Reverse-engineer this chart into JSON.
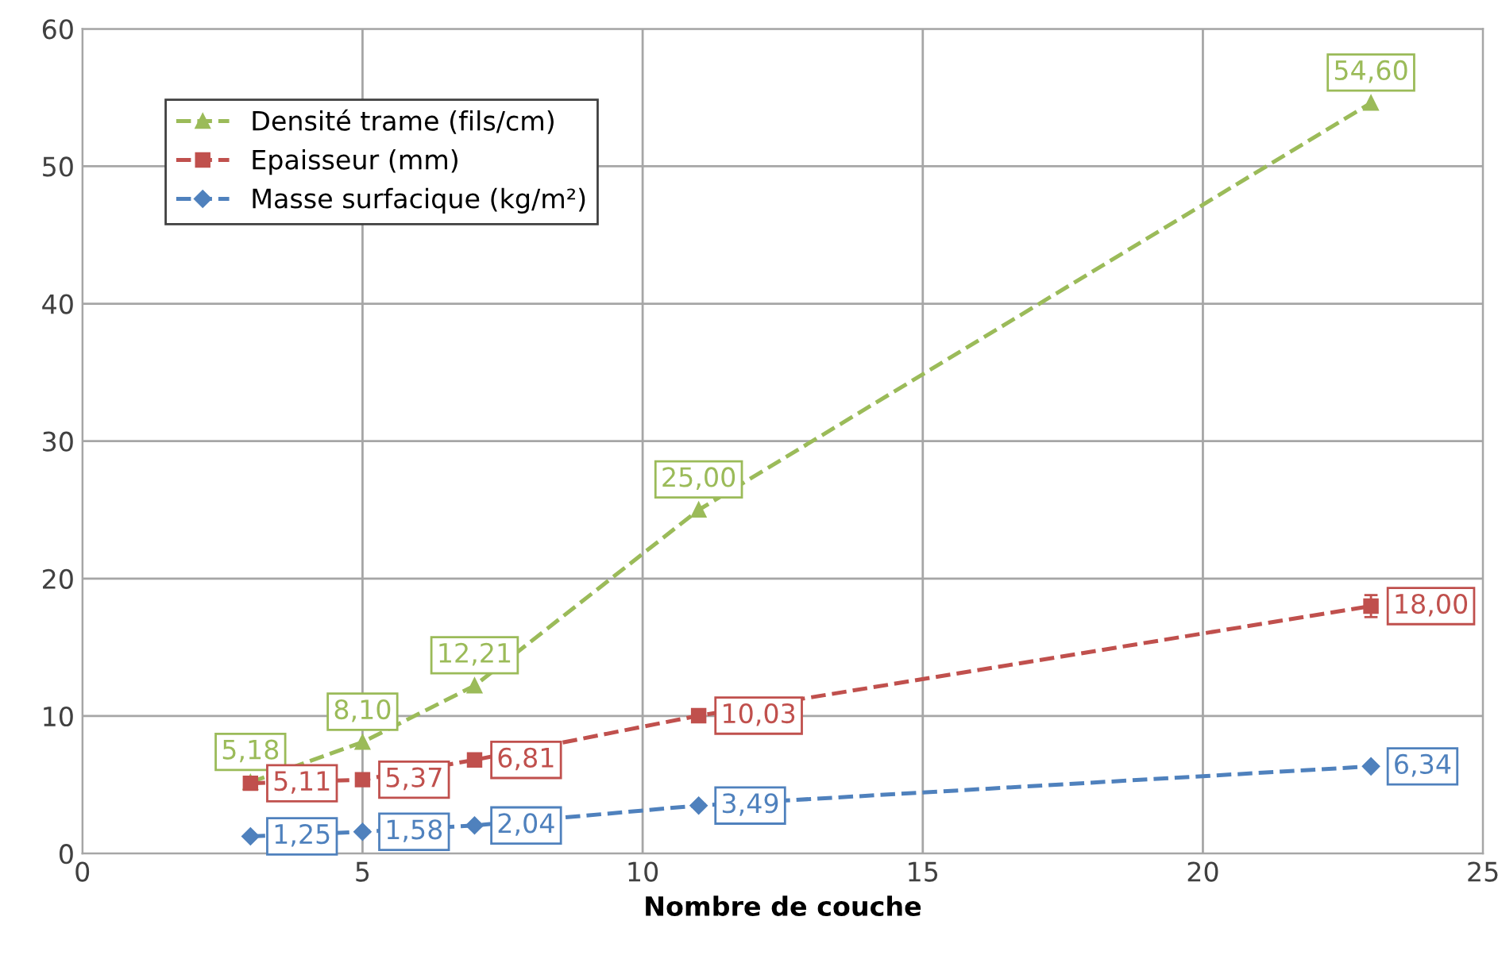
{
  "chart_data": {
    "type": "line",
    "xlabel": "Nombre de couche",
    "x": [
      3,
      5,
      7,
      11,
      23
    ],
    "series": [
      {
        "name": "Densité trame (fils/cm)",
        "color": "#9bbb59",
        "marker": "triangle",
        "values": [
          5.18,
          8.1,
          12.21,
          25.0,
          54.6
        ],
        "value_labels": [
          "5,18",
          "8,10",
          "12,21",
          "25,00",
          "54,60"
        ]
      },
      {
        "name": "Epaisseur (mm)",
        "color": "#c0504d",
        "marker": "square",
        "values": [
          5.11,
          5.37,
          6.81,
          10.03,
          18.0
        ],
        "value_labels": [
          "5,11",
          "5,37",
          "6,81",
          "10,03",
          "18,00"
        ],
        "errors": [
          null,
          null,
          null,
          null,
          0.8
        ]
      },
      {
        "name": "Masse surfacique (kg/m²)",
        "color": "#4f81bd",
        "marker": "diamond",
        "values": [
          1.25,
          1.58,
          2.04,
          3.49,
          6.34
        ],
        "value_labels": [
          "1,25",
          "1,58",
          "2,04",
          "3,49",
          "6,34"
        ]
      }
    ],
    "xlim": [
      0,
      25
    ],
    "xticks": [
      0,
      5,
      10,
      15,
      20,
      25
    ],
    "ylim": [
      0,
      60
    ],
    "yticks": [
      0,
      10,
      20,
      30,
      40,
      50,
      60
    ],
    "grid": true,
    "legend": "top left",
    "line_style": "dashed"
  }
}
